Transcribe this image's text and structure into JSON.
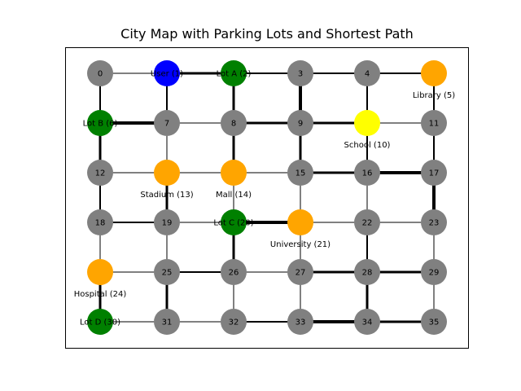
{
  "title": "City Map with Parking Lots and Shortest Path",
  "colors": {
    "regular": "#808080",
    "user": "#0000ff",
    "lot": "#008000",
    "landmark": "#ffa500",
    "school": "#ffff00",
    "edge": "#000000",
    "frame": "#000000"
  },
  "grid": {
    "rows": 6,
    "cols": 6
  },
  "nodes": [
    {
      "id": 0,
      "label": "0",
      "type": "regular"
    },
    {
      "id": 1,
      "label": "User (1)",
      "type": "user"
    },
    {
      "id": 2,
      "label": "Lot A (2)",
      "type": "lot"
    },
    {
      "id": 3,
      "label": "3",
      "type": "regular"
    },
    {
      "id": 4,
      "label": "4",
      "type": "regular"
    },
    {
      "id": 5,
      "label": "Library (5)",
      "type": "landmark",
      "external": true
    },
    {
      "id": 6,
      "label": "Lot B (6)",
      "type": "lot"
    },
    {
      "id": 7,
      "label": "7",
      "type": "regular"
    },
    {
      "id": 8,
      "label": "8",
      "type": "regular"
    },
    {
      "id": 9,
      "label": "9",
      "type": "regular"
    },
    {
      "id": 10,
      "label": "School (10)",
      "type": "school",
      "external": true
    },
    {
      "id": 11,
      "label": "11",
      "type": "regular"
    },
    {
      "id": 12,
      "label": "12",
      "type": "regular"
    },
    {
      "id": 13,
      "label": "Stadium (13)",
      "type": "landmark",
      "external": true
    },
    {
      "id": 14,
      "label": "Mall (14)",
      "type": "landmark",
      "external": true
    },
    {
      "id": 15,
      "label": "15",
      "type": "regular"
    },
    {
      "id": 16,
      "label": "16",
      "type": "regular"
    },
    {
      "id": 17,
      "label": "17",
      "type": "regular"
    },
    {
      "id": 18,
      "label": "18",
      "type": "regular"
    },
    {
      "id": 19,
      "label": "19",
      "type": "regular"
    },
    {
      "id": 20,
      "label": "Lot C (20)",
      "type": "lot"
    },
    {
      "id": 21,
      "label": "University (21)",
      "type": "landmark",
      "external": true
    },
    {
      "id": 22,
      "label": "22",
      "type": "regular"
    },
    {
      "id": 23,
      "label": "23",
      "type": "regular"
    },
    {
      "id": 24,
      "label": "Hospital (24)",
      "type": "landmark",
      "external": true
    },
    {
      "id": 25,
      "label": "25",
      "type": "regular"
    },
    {
      "id": 26,
      "label": "26",
      "type": "regular"
    },
    {
      "id": 27,
      "label": "27",
      "type": "regular"
    },
    {
      "id": 28,
      "label": "28",
      "type": "regular"
    },
    {
      "id": 29,
      "label": "29",
      "type": "regular"
    },
    {
      "id": 30,
      "label": "Lot D (30)",
      "type": "lot"
    },
    {
      "id": 31,
      "label": "31",
      "type": "regular"
    },
    {
      "id": 32,
      "label": "32",
      "type": "regular"
    },
    {
      "id": 33,
      "label": "33",
      "type": "regular"
    },
    {
      "id": 34,
      "label": "34",
      "type": "regular"
    },
    {
      "id": 35,
      "label": "35",
      "type": "regular"
    }
  ],
  "edges": [
    [
      0,
      1,
      1
    ],
    [
      1,
      2,
      3
    ],
    [
      2,
      3,
      2
    ],
    [
      3,
      4,
      2
    ],
    [
      4,
      5,
      2
    ],
    [
      6,
      7,
      4
    ],
    [
      7,
      8,
      1
    ],
    [
      8,
      9,
      3
    ],
    [
      9,
      10,
      3
    ],
    [
      10,
      11,
      1
    ],
    [
      12,
      13,
      1
    ],
    [
      13,
      14,
      1
    ],
    [
      14,
      15,
      1
    ],
    [
      15,
      16,
      3
    ],
    [
      16,
      17,
      4
    ],
    [
      18,
      19,
      2
    ],
    [
      19,
      20,
      1
    ],
    [
      20,
      21,
      4
    ],
    [
      21,
      22,
      1
    ],
    [
      22,
      23,
      1
    ],
    [
      24,
      25,
      1
    ],
    [
      25,
      26,
      2
    ],
    [
      26,
      27,
      1
    ],
    [
      27,
      28,
      3
    ],
    [
      28,
      29,
      3
    ],
    [
      30,
      31,
      1
    ],
    [
      31,
      32,
      1
    ],
    [
      32,
      33,
      2
    ],
    [
      33,
      34,
      4
    ],
    [
      34,
      35,
      3
    ],
    [
      0,
      6,
      2
    ],
    [
      6,
      12,
      3
    ],
    [
      12,
      18,
      2
    ],
    [
      18,
      24,
      1
    ],
    [
      24,
      30,
      3
    ],
    [
      1,
      7,
      2
    ],
    [
      7,
      13,
      1
    ],
    [
      13,
      19,
      3
    ],
    [
      19,
      25,
      1
    ],
    [
      25,
      31,
      3
    ],
    [
      2,
      8,
      3
    ],
    [
      8,
      14,
      3
    ],
    [
      14,
      20,
      1
    ],
    [
      20,
      26,
      3
    ],
    [
      26,
      32,
      1
    ],
    [
      3,
      9,
      4
    ],
    [
      9,
      15,
      3
    ],
    [
      15,
      21,
      1
    ],
    [
      21,
      27,
      1
    ],
    [
      27,
      33,
      1
    ],
    [
      4,
      10,
      2
    ],
    [
      10,
      16,
      2
    ],
    [
      16,
      22,
      1
    ],
    [
      22,
      28,
      2
    ],
    [
      28,
      34,
      3
    ],
    [
      5,
      11,
      2
    ],
    [
      11,
      17,
      2
    ],
    [
      17,
      23,
      4
    ],
    [
      23,
      29,
      1
    ],
    [
      29,
      35,
      1
    ]
  ]
}
